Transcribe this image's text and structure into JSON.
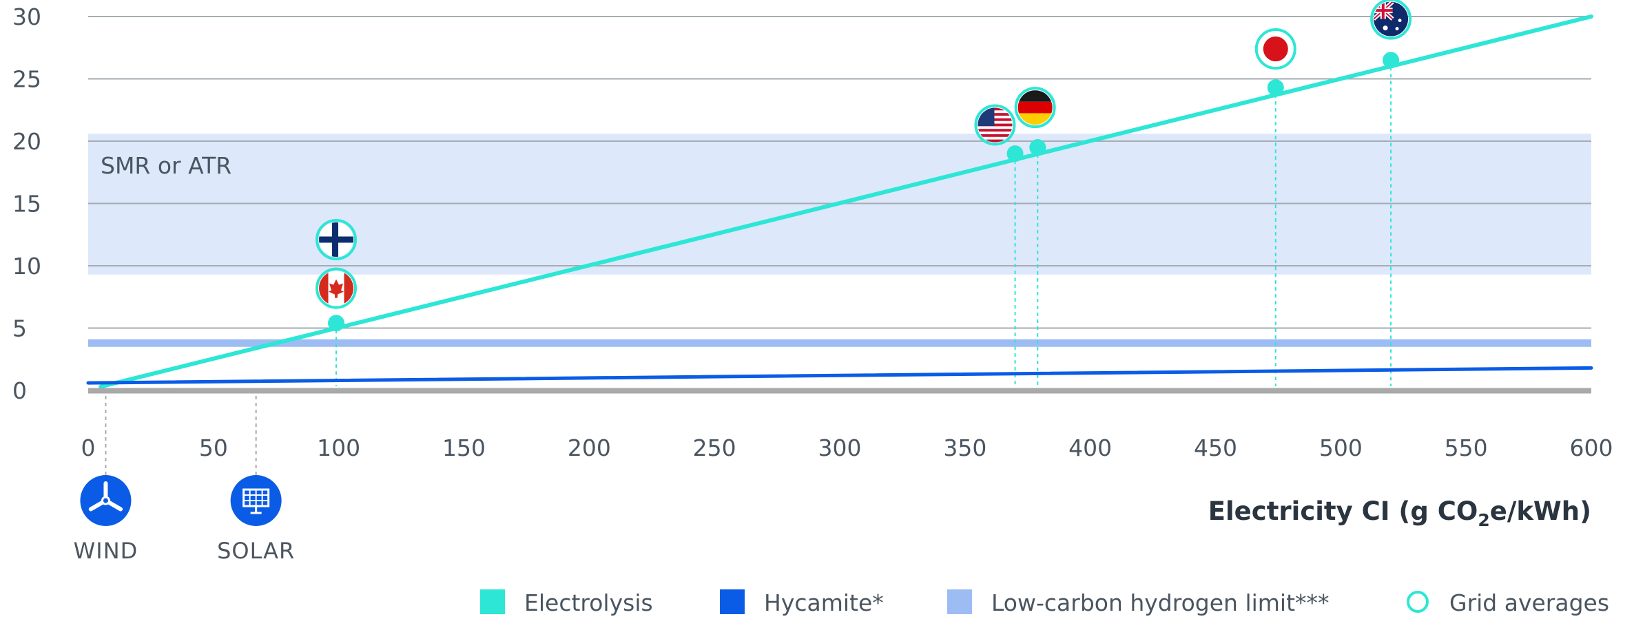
{
  "chart_data": {
    "type": "line",
    "xlabel_main": "Electricity CI (g CO",
    "xlabel_sub": "2",
    "xlabel_tail": "e/kWh)",
    "xlim": [
      0,
      600
    ],
    "ylim": [
      0,
      30
    ],
    "x_ticks": [
      "0",
      "50",
      "100",
      "150",
      "200",
      "250",
      "300",
      "350",
      "400",
      "450",
      "500",
      "550",
      "600"
    ],
    "y_ticks": [
      "0",
      "5",
      "10",
      "15",
      "20",
      "25",
      "30"
    ],
    "grid": true,
    "band": {
      "label": "SMR or ATR",
      "y_from": 9.3,
      "y_to": 20.6,
      "color": "#dde8fb"
    },
    "limit_line": {
      "y": 3.8,
      "color": "#9dbcf4"
    },
    "series": [
      {
        "name": "Electrolysis",
        "color": "#2de6d6",
        "x": [
          5,
          600
        ],
        "y": [
          0.3,
          30
        ]
      },
      {
        "name": "Hycamite*",
        "color": "#0a5ce6",
        "x": [
          0,
          600
        ],
        "y": [
          0.6,
          1.8
        ]
      }
    ],
    "grid_average_points": [
      {
        "x": 99,
        "y": 5.4
      },
      {
        "x": 370,
        "y": 19.0
      },
      {
        "x": 379,
        "y": 19.5
      },
      {
        "x": 474,
        "y": 24.3
      },
      {
        "x": 520,
        "y": 26.5
      }
    ],
    "flag_markers": [
      {
        "flag": "canada-flag-icon",
        "x": 99,
        "y": 8.2
      },
      {
        "flag": "finland-flag-icon",
        "x": 99,
        "y": 12.1
      },
      {
        "flag": "usa-flag-icon",
        "x": 362,
        "y": 21.3
      },
      {
        "flag": "germany-flag-icon",
        "x": 378,
        "y": 22.7
      },
      {
        "flag": "japan-flag-icon",
        "x": 474,
        "y": 27.4
      },
      {
        "flag": "australia-flag-icon",
        "x": 520,
        "y": 29.8
      }
    ],
    "sources": [
      {
        "label": "WIND",
        "icon": "wind-turbine-icon",
        "x": 7
      },
      {
        "label": "SOLAR",
        "icon": "solar-panel-icon",
        "x": 67
      }
    ],
    "legend": [
      {
        "label": "Electrolysis",
        "shape": "square",
        "color": "#2de6d6"
      },
      {
        "label": "Hycamite*",
        "shape": "square",
        "color": "#0a5ce6"
      },
      {
        "label": "Low-carbon hydrogen limit***",
        "shape": "square",
        "color": "#9dbcf4"
      },
      {
        "label": "Grid averages",
        "shape": "ring",
        "color": "#2de6d6"
      }
    ],
    "colors": {
      "axis": "#a9a9a9",
      "grid": "#a6acb2",
      "drop_line": "#2de6d6",
      "source_drop_line": "#a9a9a9"
    }
  }
}
